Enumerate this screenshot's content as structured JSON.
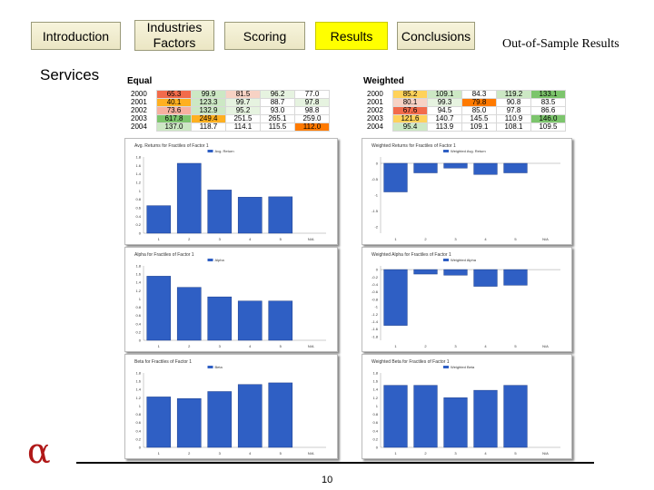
{
  "nav": {
    "intro": "Introduction",
    "industries": "Industries\nFactors",
    "scoring": "Scoring",
    "results": "Results",
    "conclusions": "Conclusions"
  },
  "side_link": "Services",
  "title": "Out-of-Sample Results",
  "tables": {
    "equal": {
      "label": "Equal",
      "rows": [
        {
          "year": "2000",
          "cells": [
            "65.3",
            "99.9",
            "81.5",
            "96.2",
            "77.0"
          ],
          "colors": [
            "#f26b4b",
            "#cce8c4",
            "#f7d2c4",
            "#e6f3e0",
            "#ffffff"
          ]
        },
        {
          "year": "2001",
          "cells": [
            "40.1",
            "123.3",
            "99.7",
            "88.7",
            "97.8"
          ],
          "colors": [
            "#ffb020",
            "#cce8c4",
            "#e6f3e0",
            "#ffffff",
            "#e6f3e0"
          ]
        },
        {
          "year": "2002",
          "cells": [
            "73.6",
            "132.9",
            "95.2",
            "93.0",
            "98.8"
          ],
          "colors": [
            "#f7b0a0",
            "#cce8c4",
            "#e6f3e0",
            "#ffffff",
            "#ffffff"
          ]
        },
        {
          "year": "2003",
          "cells": [
            "617.8",
            "249.4",
            "251.5",
            "265.1",
            "259.0"
          ],
          "colors": [
            "#7cc56c",
            "#ffb020",
            "#ffffff",
            "#ffffff",
            "#ffffff"
          ]
        },
        {
          "year": "2004",
          "cells": [
            "137.0",
            "118.7",
            "114.1",
            "115.5",
            "112.0"
          ],
          "colors": [
            "#cce8c4",
            "#ffffff",
            "#ffffff",
            "#ffffff",
            "#ff7a00"
          ]
        }
      ]
    },
    "weighted": {
      "label": "Weighted",
      "rows": [
        {
          "year": "2000",
          "cells": [
            "85.2",
            "109.1",
            "84.3",
            "119.2",
            "133.1"
          ],
          "colors": [
            "#ffd25a",
            "#cce8c4",
            "#ffffff",
            "#cce8c4",
            "#7cc56c"
          ]
        },
        {
          "year": "2001",
          "cells": [
            "80.1",
            "99.3",
            "79.8",
            "90.8",
            "83.5"
          ],
          "colors": [
            "#f7d2c4",
            "#e6f3e0",
            "#ff7a00",
            "#ffffff",
            "#ffffff"
          ]
        },
        {
          "year": "2002",
          "cells": [
            "67.6",
            "94.5",
            "85.0",
            "97.8",
            "86.6"
          ],
          "colors": [
            "#f26b4b",
            "#ffffff",
            "#ffffff",
            "#ffffff",
            "#ffffff"
          ]
        },
        {
          "year": "2003",
          "cells": [
            "121.6",
            "140.7",
            "145.5",
            "110.9",
            "146.0"
          ],
          "colors": [
            "#ffd25a",
            "#ffffff",
            "#ffffff",
            "#ffffff",
            "#7cc56c"
          ]
        },
        {
          "year": "2004",
          "cells": [
            "95.4",
            "113.9",
            "109.1",
            "108.1",
            "109.5"
          ],
          "colors": [
            "#cce8c4",
            "#ffffff",
            "#ffffff",
            "#ffffff",
            "#ffffff"
          ]
        }
      ]
    }
  },
  "chart_data": [
    {
      "type": "bar",
      "title": "Avg. Returns for Fractiles of Factor 1",
      "legend": "Avg. Return",
      "categories": [
        "1",
        "2",
        "3",
        "4",
        "5",
        "N/A"
      ],
      "values": [
        0.65,
        1.65,
        1.02,
        0.85,
        0.86,
        0
      ],
      "ylim": [
        0,
        1.8
      ],
      "yticks": [
        "1.8",
        "1.6",
        "1.4",
        "1.2",
        "1",
        "0.8",
        "0.6",
        "0.4",
        "0.2",
        "0"
      ]
    },
    {
      "type": "bar",
      "title": "Weighted Returns for Fractiles of Factor 1",
      "legend": "Weighted Avg. Return",
      "categories": [
        "1",
        "2",
        "3",
        "4",
        "5",
        "N/A"
      ],
      "values": [
        -0.9,
        -0.3,
        -0.15,
        -0.35,
        -0.3,
        0
      ],
      "ylim": [
        -2.2,
        0.2
      ],
      "yticks": [
        "0",
        "-0.5",
        "-1",
        "-1.5",
        "-2"
      ]
    },
    {
      "type": "bar",
      "title": "Alpha for Fractiles of Factor 1",
      "legend": "Alpha",
      "categories": [
        "1",
        "2",
        "3",
        "4",
        "5",
        "N/A"
      ],
      "values": [
        1.55,
        1.28,
        1.05,
        0.95,
        0.95,
        0
      ],
      "ylim": [
        0,
        1.8
      ],
      "yticks": [
        "1.8",
        "1.6",
        "1.4",
        "1.2",
        "1",
        "0.8",
        "0.6",
        "0.4",
        "0.2",
        "0"
      ]
    },
    {
      "type": "bar",
      "title": "Weighted Alpha for Fractiles of Factor 1",
      "legend": "Weighted Alpha",
      "categories": [
        "1",
        "2",
        "3",
        "4",
        "5",
        "N/A"
      ],
      "values": [
        -1.5,
        -0.12,
        -0.15,
        -0.45,
        -0.42,
        0
      ],
      "ylim": [
        -1.9,
        0.1
      ],
      "yticks": [
        "0",
        "-0.2",
        "-0.4",
        "-0.6",
        "-0.8",
        "-1",
        "-1.2",
        "-1.4",
        "-1.6",
        "-1.8"
      ]
    },
    {
      "type": "bar",
      "title": "Beta for Fractiles of Factor 1",
      "legend": "Beta",
      "categories": [
        "1",
        "2",
        "3",
        "4",
        "5",
        "N/A"
      ],
      "values": [
        1.22,
        1.18,
        1.35,
        1.52,
        1.56,
        0
      ],
      "ylim": [
        0,
        1.8
      ],
      "yticks": [
        "1.8",
        "1.6",
        "1.4",
        "1.2",
        "1",
        "0.8",
        "0.6",
        "0.4",
        "0.2",
        "0"
      ]
    },
    {
      "type": "bar",
      "title": "Weighted Beta for Fractiles of Factor 1",
      "legend": "Weighted Beta",
      "categories": [
        "1",
        "2",
        "3",
        "4",
        "5",
        "N/A"
      ],
      "values": [
        1.5,
        1.5,
        1.2,
        1.38,
        1.5,
        0
      ],
      "ylim": [
        0,
        1.8
      ],
      "yticks": [
        "1.8",
        "1.6",
        "1.4",
        "1.2",
        "1",
        "0.8",
        "0.6",
        "0.4",
        "0.2",
        "0"
      ]
    }
  ],
  "colors": {
    "bar": "#2f5fc4",
    "bar_edge": "#1c3e8a",
    "active_nav": "#ffff00",
    "logo": "#b01818"
  },
  "page_number": "10"
}
